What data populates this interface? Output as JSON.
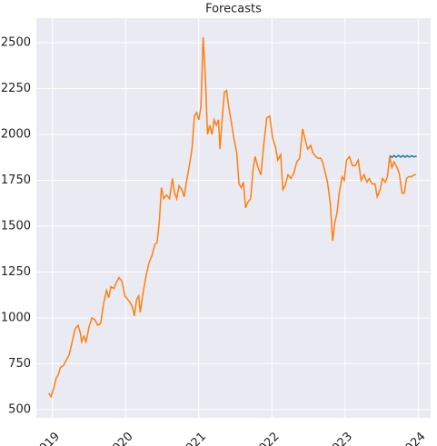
{
  "chart_data": {
    "type": "line",
    "title": "Forecasts",
    "xlim": [
      2018.78,
      2024.17
    ],
    "xticks": [
      2019,
      2020,
      2021,
      2022,
      2023,
      2024
    ],
    "ylim": [
      455,
      2634
    ],
    "yticks": [
      500,
      750,
      1000,
      1250,
      1500,
      1750,
      2000,
      2250,
      2500
    ],
    "grid": true,
    "background": "#eaeaf2",
    "series": [
      {
        "color": "#ff7f0e",
        "x": [
          2018.95,
          2018.98,
          2019.02,
          2019.05,
          2019.08,
          2019.11,
          2019.15,
          2019.19,
          2019.23,
          2019.27,
          2019.31,
          2019.35,
          2019.38,
          2019.4,
          2019.43,
          2019.46,
          2019.5,
          2019.54,
          2019.58,
          2019.62,
          2019.66,
          2019.7,
          2019.74,
          2019.77,
          2019.8,
          2019.84,
          2019.87,
          2019.91,
          2019.95,
          2019.99,
          2020.03,
          2020.07,
          2020.1,
          2020.12,
          2020.15,
          2020.18,
          2020.2,
          2020.24,
          2020.28,
          2020.32,
          2020.36,
          2020.4,
          2020.43,
          2020.46,
          2020.49,
          2020.52,
          2020.56,
          2020.6,
          2020.64,
          2020.67,
          2020.7,
          2020.73,
          2020.77,
          2020.8,
          2020.84,
          2020.88,
          2020.91,
          2020.94,
          2020.97,
          2021.0,
          2021.03,
          2021.06,
          2021.09,
          2021.12,
          2021.15,
          2021.18,
          2021.21,
          2021.24,
          2021.27,
          2021.29,
          2021.32,
          2021.35,
          2021.38,
          2021.41,
          2021.44,
          2021.48,
          2021.52,
          2021.55,
          2021.58,
          2021.61,
          2021.64,
          2021.67,
          2021.71,
          2021.74,
          2021.77,
          2021.81,
          2021.85,
          2021.89,
          2021.93,
          2021.97,
          2022.01,
          2022.05,
          2022.08,
          2022.12,
          2022.15,
          2022.18,
          2022.22,
          2022.26,
          2022.3,
          2022.34,
          2022.38,
          2022.42,
          2022.45,
          2022.49,
          2022.53,
          2022.56,
          2022.6,
          2022.63,
          2022.67,
          2022.7,
          2022.73,
          2022.76,
          2022.8,
          2022.83,
          2022.86,
          2022.89,
          2022.92,
          2022.96,
          2022.99,
          2023.02,
          2023.06,
          2023.1,
          2023.14,
          2023.18,
          2023.22,
          2023.26,
          2023.3,
          2023.33,
          2023.37,
          2023.41,
          2023.44,
          2023.48,
          2023.51,
          2023.55,
          2023.58,
          2023.61,
          2023.64,
          2023.67,
          2023.71,
          2023.74,
          2023.78,
          2023.81,
          2023.84,
          2023.87,
          2023.91,
          2023.94,
          2023.97
        ],
        "values": [
          590,
          570,
          620,
          670,
          690,
          730,
          740,
          770,
          800,
          870,
          940,
          960,
          920,
          870,
          900,
          870,
          950,
          1000,
          990,
          960,
          970,
          1080,
          1150,
          1110,
          1170,
          1160,
          1190,
          1220,
          1200,
          1120,
          1100,
          1080,
          1050,
          1010,
          1100,
          1120,
          1030,
          1140,
          1230,
          1300,
          1340,
          1400,
          1410,
          1520,
          1710,
          1650,
          1670,
          1650,
          1760,
          1680,
          1650,
          1720,
          1700,
          1660,
          1760,
          1850,
          1930,
          2100,
          2120,
          2080,
          2150,
          2530,
          2320,
          2000,
          2050,
          2000,
          2080,
          2050,
          2080,
          1920,
          2080,
          2230,
          2240,
          2150,
          2080,
          1980,
          1900,
          1730,
          1710,
          1740,
          1600,
          1630,
          1650,
          1800,
          1880,
          1820,
          1780,
          1950,
          2090,
          2100,
          1980,
          1930,
          1860,
          1890,
          1700,
          1720,
          1780,
          1760,
          1790,
          1850,
          1870,
          2030,
          1980,
          1920,
          1940,
          1900,
          1880,
          1870,
          1870,
          1840,
          1790,
          1740,
          1620,
          1420,
          1520,
          1570,
          1680,
          1770,
          1750,
          1860,
          1880,
          1830,
          1830,
          1860,
          1750,
          1780,
          1740,
          1760,
          1730,
          1730,
          1660,
          1700,
          1760,
          1740,
          1770,
          1880,
          1820,
          1850,
          1820,
          1790,
          1680,
          1680,
          1760,
          1770,
          1770,
          1780,
          1780
        ]
      },
      {
        "color": "#1f77b4",
        "x": [
          2023.61,
          2023.64,
          2023.67,
          2023.7,
          2023.73,
          2023.76,
          2023.79,
          2023.82,
          2023.85,
          2023.88,
          2023.91,
          2023.94,
          2023.98
        ],
        "values": [
          1885,
          1875,
          1885,
          1876,
          1886,
          1876,
          1885,
          1876,
          1884,
          1877,
          1884,
          1878,
          1882
        ]
      }
    ]
  }
}
